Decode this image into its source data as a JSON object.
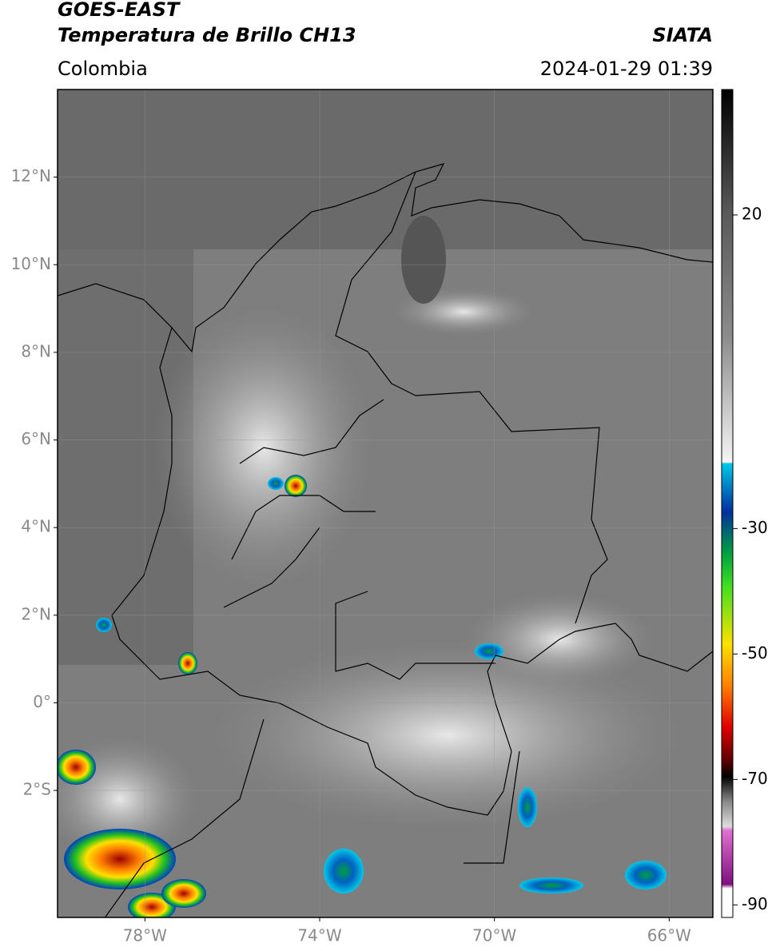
{
  "header": {
    "title": "GOES-EAST",
    "subtitle": "Temperatura de Brillo CH13",
    "source": "SIATA",
    "region": "Colombia",
    "timestamp": "2024-01-29 01:39"
  },
  "map": {
    "xlim": [
      -80,
      -65
    ],
    "ylim": [
      -4.9,
      14
    ],
    "lat_ticks": [
      {
        "value": 12,
        "label": "12°N"
      },
      {
        "value": 10,
        "label": "10°N"
      },
      {
        "value": 8,
        "label": "8°N"
      },
      {
        "value": 6,
        "label": "6°N"
      },
      {
        "value": 4,
        "label": "4°N"
      },
      {
        "value": 2,
        "label": "2°N"
      },
      {
        "value": 0,
        "label": "0°"
      },
      {
        "value": -2,
        "label": "2°S"
      }
    ],
    "lon_ticks": [
      {
        "value": -78,
        "label": "78°W"
      },
      {
        "value": -74,
        "label": "74°W"
      },
      {
        "value": -70,
        "label": "70°W"
      },
      {
        "value": -66,
        "label": "66°W"
      }
    ]
  },
  "colorbar": {
    "lim": [
      -92,
      40
    ],
    "ticks": [
      20,
      -30,
      -50,
      -70,
      -90
    ]
  }
}
